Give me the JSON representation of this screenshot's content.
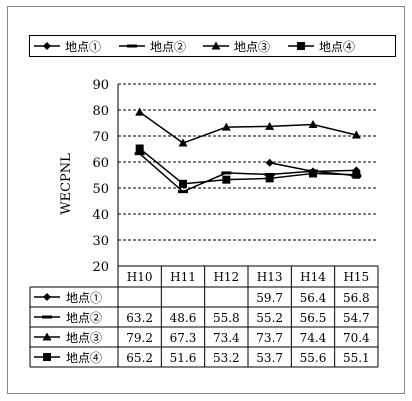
{
  "chart_data": {
    "type": "line",
    "ylabel": "WECPNL",
    "ylim": [
      20,
      90
    ],
    "yticks": [
      20,
      30,
      40,
      50,
      60,
      70,
      80,
      90
    ],
    "grid": "horizontal dashed",
    "legend_placement": "top",
    "categories": [
      "H10",
      "H11",
      "H12",
      "H13",
      "H14",
      "H15"
    ],
    "series": [
      {
        "name": "地点①",
        "marker": "diamond",
        "values": [
          null,
          null,
          null,
          59.7,
          56.4,
          56.8
        ],
        "labels": [
          "",
          "",
          "",
          "59.7",
          "56.4",
          "56.8"
        ]
      },
      {
        "name": "地点②",
        "marker": "dash",
        "values": [
          63.2,
          48.6,
          55.8,
          55.2,
          56.5,
          54.7
        ],
        "labels": [
          "63.2",
          "48.6",
          "55.8",
          "55.2",
          "56.5",
          "54.7"
        ]
      },
      {
        "name": "地点③",
        "marker": "triangle",
        "values": [
          79.2,
          67.3,
          73.4,
          73.7,
          74.4,
          70.4
        ],
        "labels": [
          "79.2",
          "67.3",
          "73.4",
          "73.7",
          "74.4",
          "70.4"
        ]
      },
      {
        "name": "地点④",
        "marker": "square",
        "values": [
          65.2,
          51.6,
          53.2,
          53.7,
          55.6,
          55.1
        ],
        "labels": [
          "65.2",
          "51.6",
          "53.2",
          "53.7",
          "55.6",
          "55.1"
        ]
      }
    ]
  }
}
